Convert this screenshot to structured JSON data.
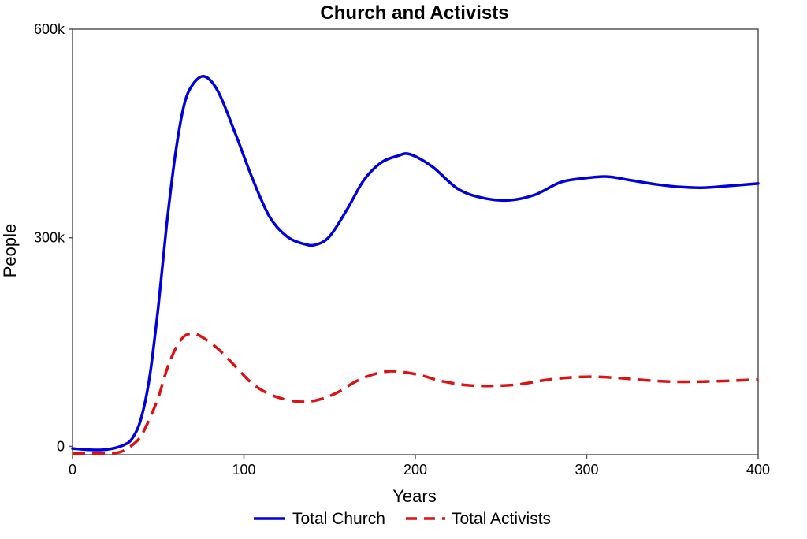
{
  "chart_data": {
    "type": "line",
    "title": "Church and Activists",
    "xlabel": "Years",
    "ylabel": "People",
    "xlim": [
      0,
      400
    ],
    "ylim": [
      -12000,
      600000
    ],
    "x_ticks": [
      0,
      100,
      200,
      300,
      400
    ],
    "x_tick_labels": [
      "0",
      "100",
      "200",
      "300",
      "400"
    ],
    "y_ticks": [
      0,
      300000,
      600000
    ],
    "y_tick_labels": [
      "0",
      "300k",
      "600k"
    ],
    "grid": false,
    "legend_position": "bottom",
    "series": [
      {
        "name": "Total Church",
        "color": "#0000dd",
        "dash": "solid",
        "points": [
          [
            0,
            -3000
          ],
          [
            10,
            -5000
          ],
          [
            20,
            -4500
          ],
          [
            30,
            2000
          ],
          [
            35,
            12000
          ],
          [
            40,
            40000
          ],
          [
            45,
            100000
          ],
          [
            50,
            200000
          ],
          [
            55,
            320000
          ],
          [
            60,
            420000
          ],
          [
            65,
            490000
          ],
          [
            70,
            520000
          ],
          [
            77,
            532000
          ],
          [
            85,
            510000
          ],
          [
            95,
            450000
          ],
          [
            105,
            385000
          ],
          [
            115,
            330000
          ],
          [
            125,
            302000
          ],
          [
            135,
            291000
          ],
          [
            142,
            290000
          ],
          [
            150,
            302000
          ],
          [
            160,
            340000
          ],
          [
            170,
            383000
          ],
          [
            180,
            408000
          ],
          [
            190,
            418000
          ],
          [
            197,
            420000
          ],
          [
            210,
            402000
          ],
          [
            225,
            370000
          ],
          [
            240,
            357000
          ],
          [
            255,
            354000
          ],
          [
            270,
            362000
          ],
          [
            285,
            380000
          ],
          [
            300,
            386000
          ],
          [
            312,
            388000
          ],
          [
            325,
            383000
          ],
          [
            340,
            377000
          ],
          [
            355,
            373000
          ],
          [
            367,
            372000
          ],
          [
            380,
            374000
          ],
          [
            400,
            378000
          ]
        ]
      },
      {
        "name": "Total Activists",
        "color": "#dd1111",
        "dash": "dashed",
        "points": [
          [
            0,
            -10000
          ],
          [
            10,
            -10000
          ],
          [
            20,
            -10000
          ],
          [
            28,
            -8000
          ],
          [
            35,
            2000
          ],
          [
            40,
            15000
          ],
          [
            45,
            40000
          ],
          [
            50,
            70000
          ],
          [
            55,
            110000
          ],
          [
            60,
            140000
          ],
          [
            65,
            158000
          ],
          [
            70,
            162000
          ],
          [
            75,
            158000
          ],
          [
            85,
            140000
          ],
          [
            95,
            115000
          ],
          [
            105,
            90000
          ],
          [
            115,
            75000
          ],
          [
            125,
            67000
          ],
          [
            135,
            64000
          ],
          [
            145,
            68000
          ],
          [
            155,
            78000
          ],
          [
            165,
            93000
          ],
          [
            175,
            103000
          ],
          [
            185,
            108000
          ],
          [
            195,
            106000
          ],
          [
            205,
            101000
          ],
          [
            215,
            94000
          ],
          [
            230,
            88000
          ],
          [
            245,
            87000
          ],
          [
            260,
            89000
          ],
          [
            275,
            95000
          ],
          [
            290,
            99000
          ],
          [
            305,
            100000
          ],
          [
            320,
            98000
          ],
          [
            335,
            95000
          ],
          [
            350,
            93000
          ],
          [
            365,
            93000
          ],
          [
            380,
            94000
          ],
          [
            400,
            96000
          ]
        ]
      }
    ]
  }
}
